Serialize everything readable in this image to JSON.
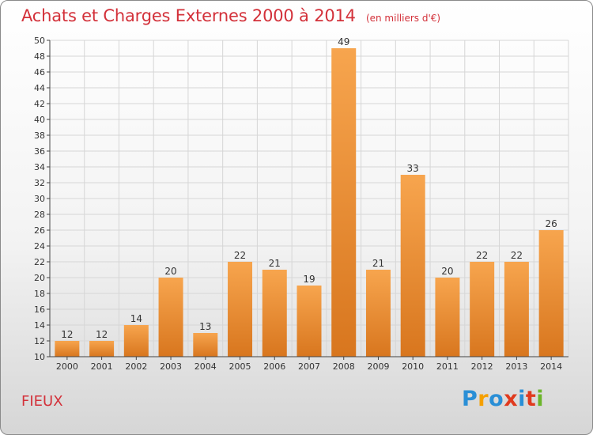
{
  "header": {
    "title": "Achats et Charges Externes 2000 à 2014",
    "subtitle": "(en milliers d'€)"
  },
  "footer": {
    "commune": "FIEUX",
    "brand": [
      "P",
      "r",
      "o",
      "x",
      "i",
      "t",
      "i"
    ]
  },
  "colors": {
    "title": "#d3313a",
    "bar_light": "#f7a54e",
    "bar_dark": "#d8761e",
    "grid": "#d6d6d6",
    "axis": "#444444",
    "brand": [
      "#2a8fd6",
      "#f5a000",
      "#2a8fd6",
      "#e03a1e",
      "#2a8fd6",
      "#e03a1e",
      "#6bb52a"
    ]
  },
  "chart_data": {
    "type": "bar",
    "categories": [
      "2000",
      "2001",
      "2002",
      "2003",
      "2004",
      "2005",
      "2006",
      "2007",
      "2008",
      "2009",
      "2010",
      "2011",
      "2012",
      "2013",
      "2014"
    ],
    "values": [
      12,
      12,
      14,
      20,
      13,
      22,
      21,
      19,
      49,
      21,
      33,
      20,
      22,
      22,
      26
    ],
    "ylim": [
      10,
      50
    ],
    "yticks": [
      10,
      12,
      14,
      16,
      18,
      20,
      22,
      24,
      26,
      28,
      30,
      32,
      34,
      36,
      38,
      40,
      42,
      44,
      46,
      48,
      50
    ],
    "grid": true,
    "data_labels": true
  }
}
